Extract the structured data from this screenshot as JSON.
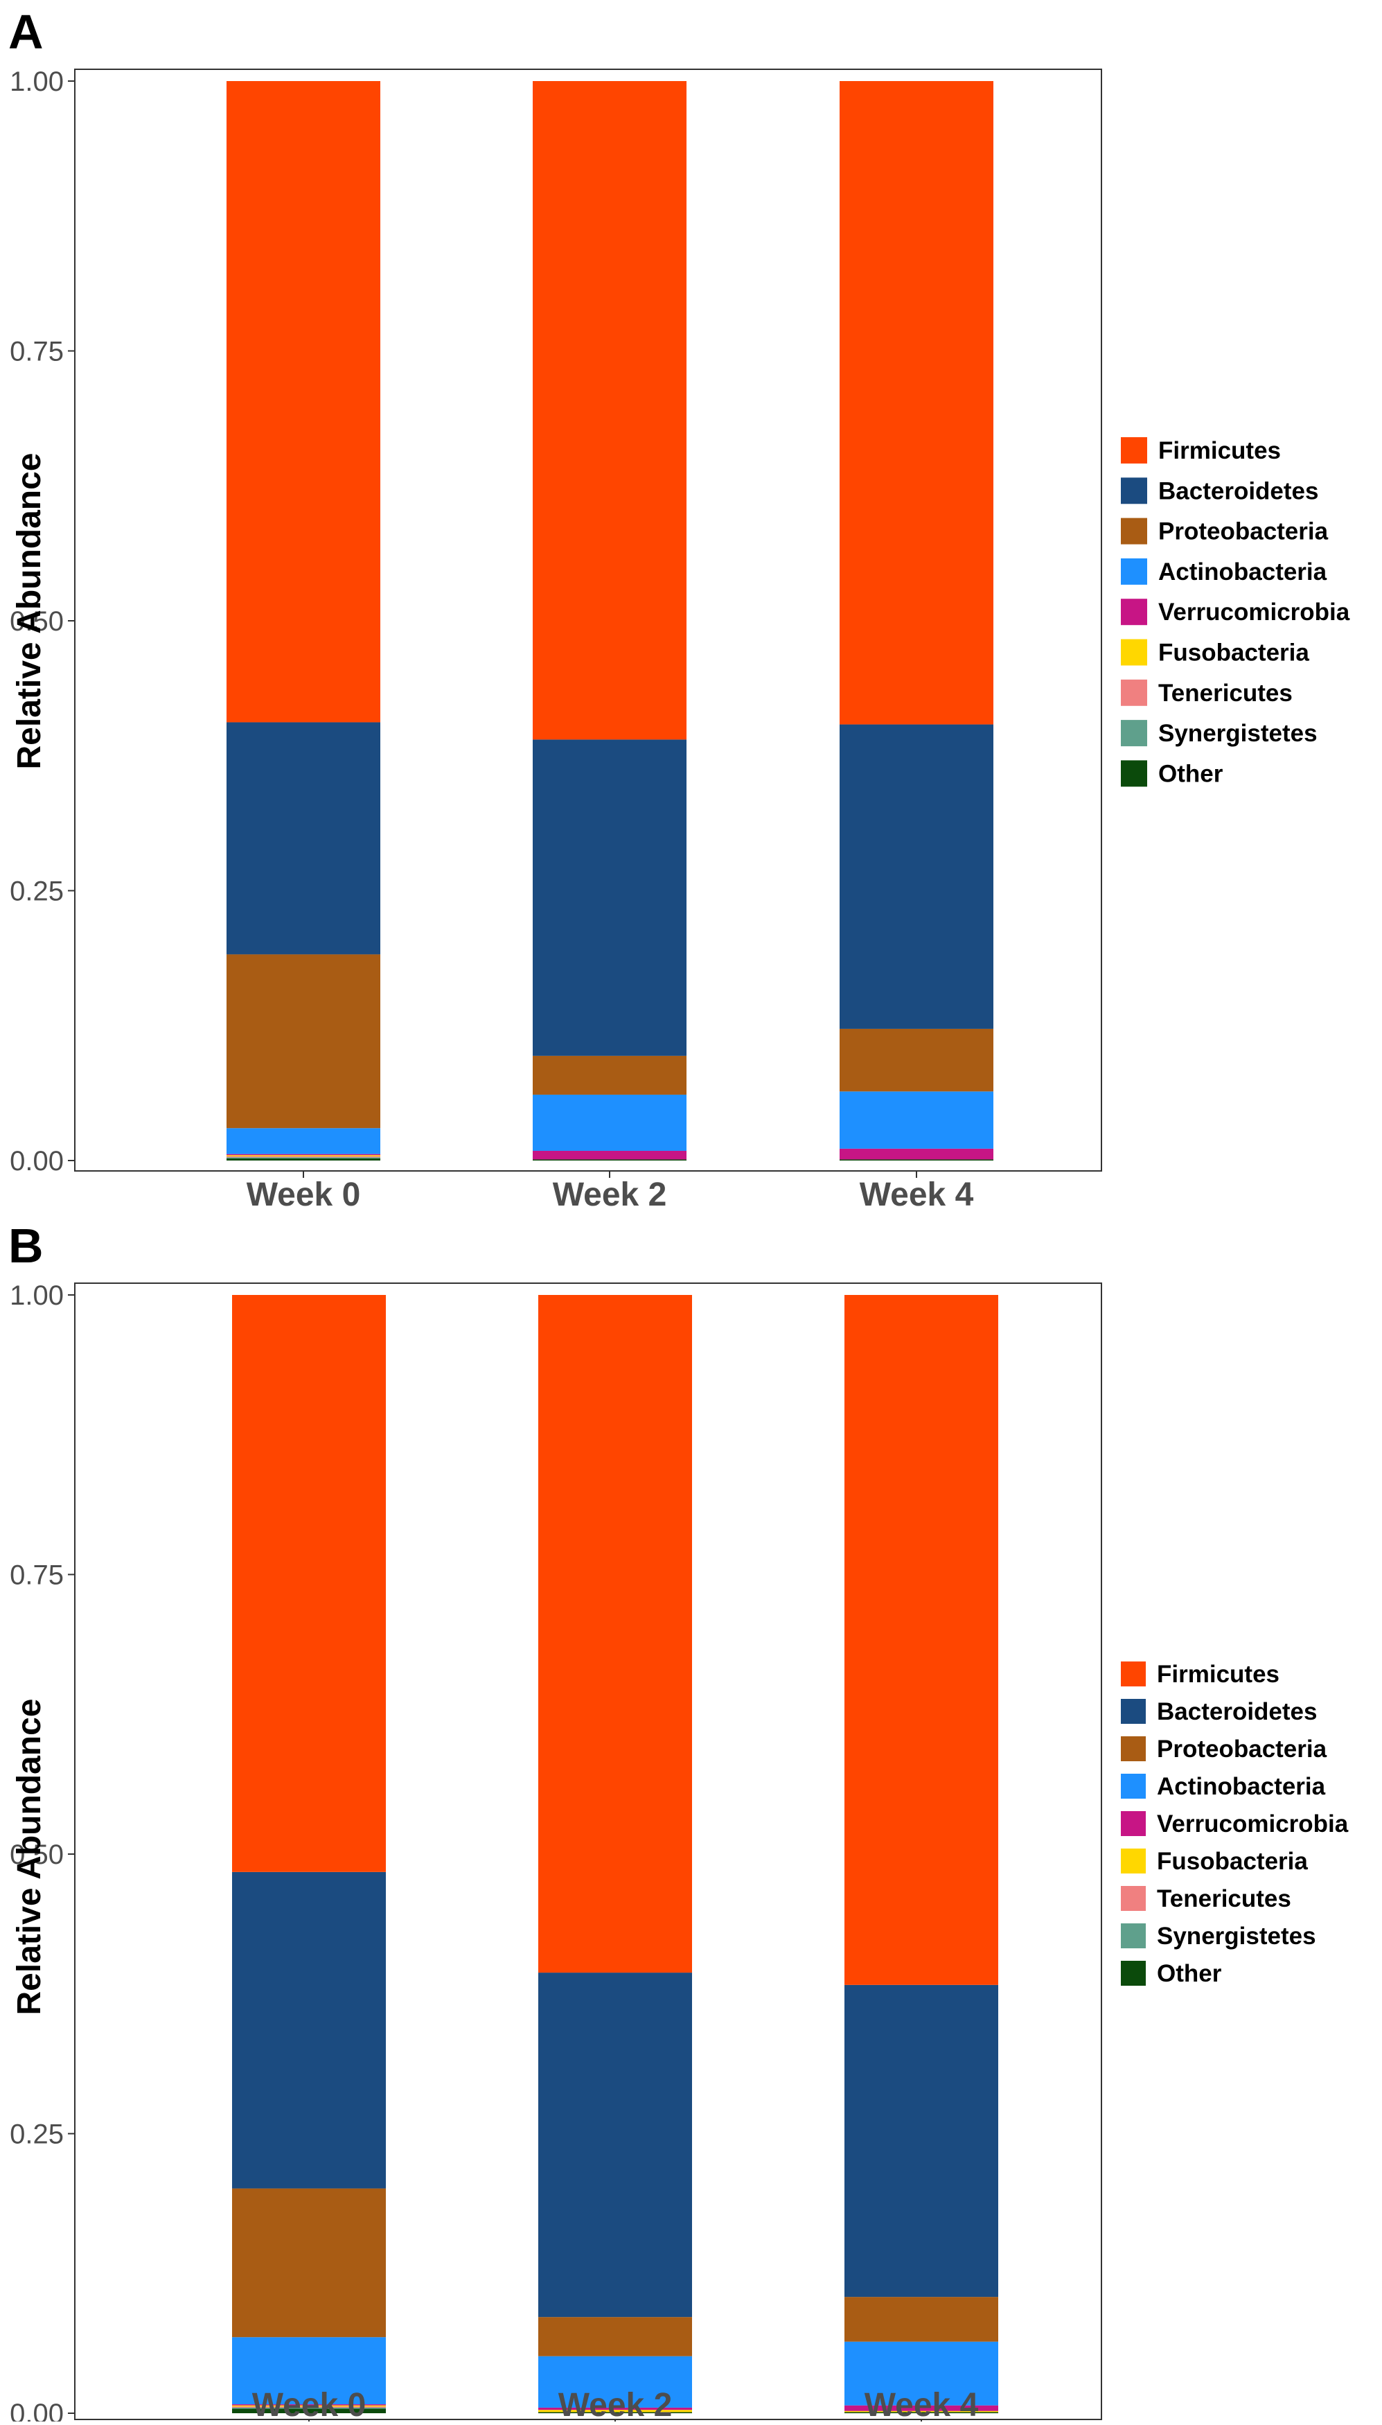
{
  "colors": {
    "Firmicutes": "#FF4500",
    "Bacteroidetes": "#1B4B80",
    "Proteobacteria": "#A95C14",
    "Actinobacteria": "#1E90FF",
    "Verrucomicrobia": "#C71585",
    "Fusobacteria": "#FFD700",
    "Tenericutes": "#F08080",
    "Synergistetes": "#5FA08C",
    "Other": "#0B4A0B",
    "axis": "#333333",
    "tick_text": "#4d4d4d"
  },
  "chart_data": [
    {
      "type": "bar",
      "stacked": true,
      "panel_label": "A",
      "title": "",
      "xlabel": "",
      "ylabel": "Relative Abundance",
      "ylim": [
        0,
        1
      ],
      "yticks": [
        "0.00",
        "0.25",
        "0.50",
        "0.75",
        "1.00"
      ],
      "categories": [
        "Week 0",
        "Week 2",
        "Week 4"
      ],
      "legend_position": "right",
      "series": [
        {
          "name": "Other",
          "values": [
            0.002,
            0.001,
            0.001
          ]
        },
        {
          "name": "Synergistetes",
          "values": [
            0.001,
            0.0,
            0.0
          ]
        },
        {
          "name": "Tenericutes",
          "values": [
            0.001,
            0.0,
            0.0
          ]
        },
        {
          "name": "Fusobacteria",
          "values": [
            0.001,
            0.0,
            0.0
          ]
        },
        {
          "name": "Verrucomicrobia",
          "values": [
            0.001,
            0.008,
            0.01
          ]
        },
        {
          "name": "Actinobacteria",
          "values": [
            0.024,
            0.052,
            0.053
          ]
        },
        {
          "name": "Proteobacteria",
          "values": [
            0.161,
            0.036,
            0.058
          ]
        },
        {
          "name": "Bacteroidetes",
          "values": [
            0.215,
            0.293,
            0.282
          ]
        },
        {
          "name": "Firmicutes",
          "values": [
            0.594,
            0.61,
            0.596
          ]
        }
      ]
    },
    {
      "type": "bar",
      "stacked": true,
      "panel_label": "B",
      "title": "",
      "xlabel": "",
      "ylabel": "Relative Abundance",
      "ylim": [
        0,
        1
      ],
      "yticks": [
        "0.00",
        "0.25",
        "0.50",
        "0.75",
        "1.00"
      ],
      "categories": [
        "Week 0",
        "Week 2",
        "Week 4"
      ],
      "legend_position": "right",
      "series": [
        {
          "name": "Other",
          "values": [
            0.004,
            0.001,
            0.001
          ]
        },
        {
          "name": "Synergistetes",
          "values": [
            0.001,
            0.0,
            0.0
          ]
        },
        {
          "name": "Tenericutes",
          "values": [
            0.001,
            0.0,
            0.0
          ]
        },
        {
          "name": "Fusobacteria",
          "values": [
            0.001,
            0.002,
            0.001
          ]
        },
        {
          "name": "Verrucomicrobia",
          "values": [
            0.001,
            0.002,
            0.005
          ]
        },
        {
          "name": "Actinobacteria",
          "values": [
            0.06,
            0.046,
            0.057
          ]
        },
        {
          "name": "Proteobacteria",
          "values": [
            0.133,
            0.035,
            0.04
          ]
        },
        {
          "name": "Bacteroidetes",
          "values": [
            0.283,
            0.308,
            0.279
          ]
        },
        {
          "name": "Firmicutes",
          "values": [
            0.516,
            0.606,
            0.617
          ]
        }
      ]
    }
  ],
  "legends": [
    [
      "Firmicutes",
      "Bacteroidetes",
      "Proteobacteria",
      "Actinobacteria",
      "Verrucomicrobia",
      "Fusobacteria",
      "Tenericutes",
      "Synergistetes",
      "Other"
    ],
    [
      "Firmicutes",
      "Bacteroidetes",
      "Proteobacteria",
      "Actinobacteria",
      "Verrucomicrobia",
      "Fusobacteria",
      "Tenericutes",
      "Synergistetes",
      "Other"
    ]
  ]
}
